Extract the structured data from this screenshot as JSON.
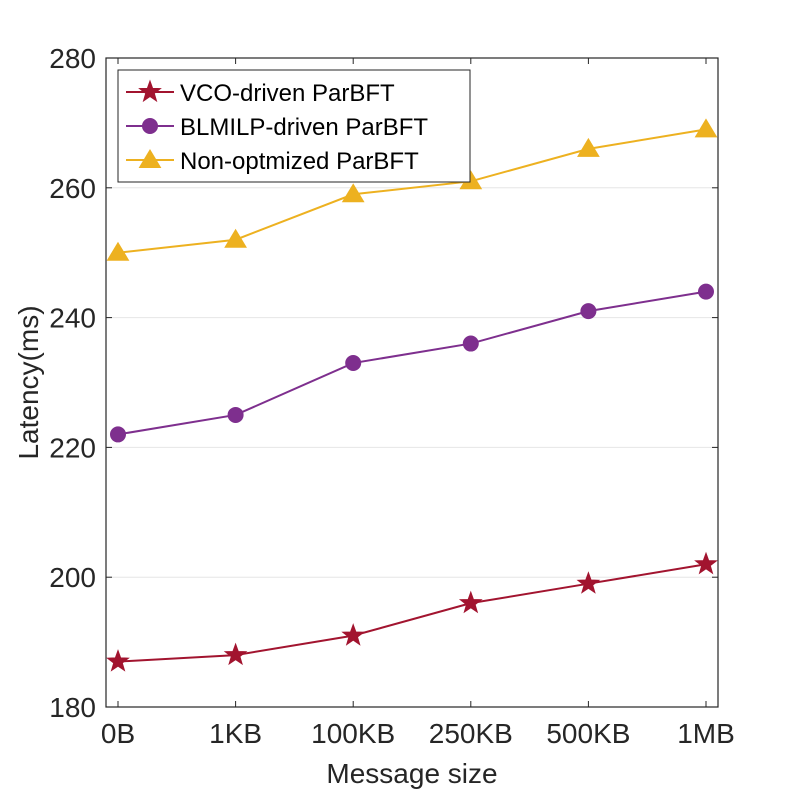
{
  "chart_data": {
    "type": "line",
    "title": "",
    "xlabel": "Message size",
    "ylabel": "Latency(ms)",
    "categories": [
      "0B",
      "1KB",
      "100KB",
      "250KB",
      "500KB",
      "1MB"
    ],
    "ylim": [
      180,
      280
    ],
    "yticks": [
      180,
      200,
      220,
      240,
      260,
      280
    ],
    "grid": true,
    "legend_position": "top-left",
    "series": [
      {
        "name": "VCO-driven ParBFT",
        "marker": "star",
        "color": "#a2142f",
        "values": [
          187,
          188,
          191,
          196,
          199,
          202
        ]
      },
      {
        "name": "BLMILP-driven ParBFT",
        "marker": "circle",
        "color": "#7e2f8e",
        "values": [
          222,
          225,
          233,
          236,
          241,
          244
        ]
      },
      {
        "name": "Non-optmized ParBFT",
        "marker": "triangle",
        "color": "#edb120",
        "values": [
          250,
          252,
          259,
          261,
          266,
          269
        ]
      }
    ]
  }
}
